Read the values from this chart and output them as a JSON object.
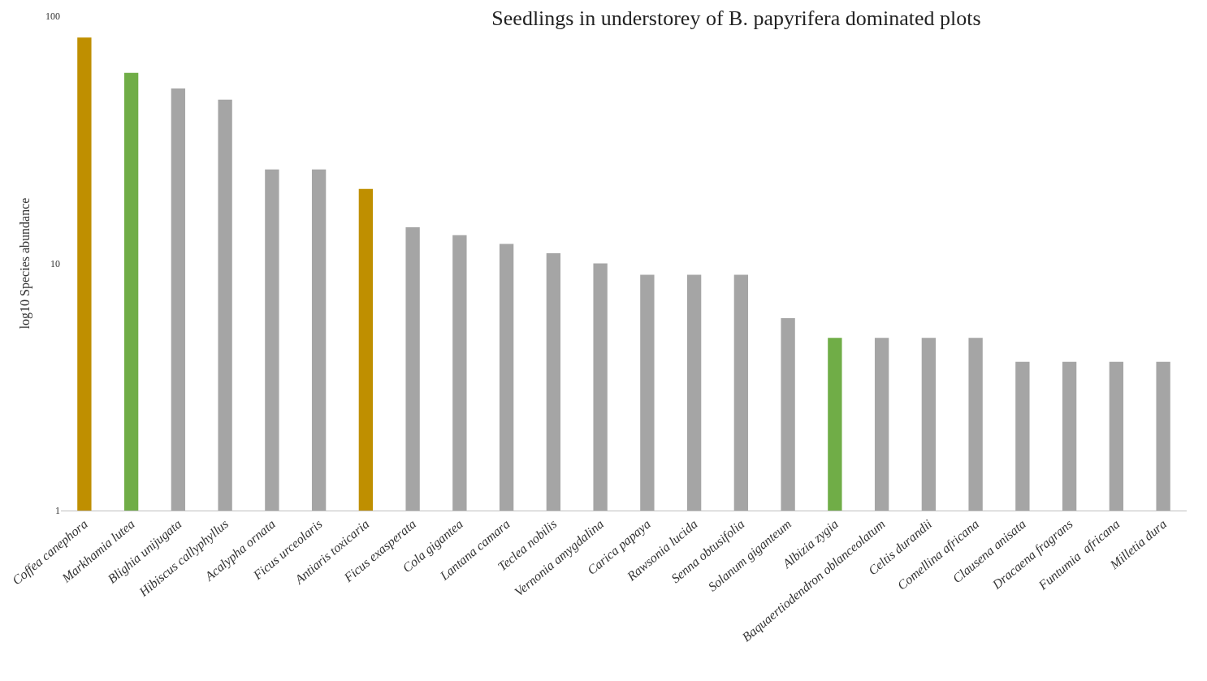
{
  "chart_data": {
    "type": "bar",
    "title": "Seedlings in understorey of B. papyrifera dominated plots",
    "ylabel": "log10 Species abundance",
    "categories": [
      "Coffea canephora",
      "Markhamia lutea",
      "Blighia unijugata",
      "Hibiscus callyphyllus",
      "Acalypha ornata",
      "Ficus urceolaris",
      "Antiaris toxicaria",
      "Ficus exasperata",
      "Cola gigantea",
      "Lantana camara",
      "Teclea nobilis",
      "Vernonia amygdalina",
      "Carica papaya",
      "Rawsonia lucida",
      "Senna obtusifolia",
      "Solanum giganteum",
      "Albizia zygia",
      "Baquaertiodendron oblanceolatum",
      "Celtis durandii",
      "Comellina africana",
      "Clausena anisata",
      "Dracaena fragrans",
      "Funtumia  africana",
      "Milletia dura"
    ],
    "values": [
      82,
      59,
      51,
      46,
      24,
      24,
      20,
      14,
      13,
      12,
      11,
      10,
      9,
      9,
      9,
      6,
      5,
      5,
      5,
      5,
      4,
      4,
      4,
      4
    ],
    "colors": [
      "#bf8f00",
      "#70ad47",
      "#a5a5a5",
      "#a5a5a5",
      "#a5a5a5",
      "#a5a5a5",
      "#bf8f00",
      "#a5a5a5",
      "#a5a5a5",
      "#a5a5a5",
      "#a5a5a5",
      "#a5a5a5",
      "#a5a5a5",
      "#a5a5a5",
      "#a5a5a5",
      "#a5a5a5",
      "#70ad47",
      "#a5a5a5",
      "#a5a5a5",
      "#a5a5a5",
      "#a5a5a5",
      "#a5a5a5",
      "#a5a5a5",
      "#a5a5a5"
    ],
    "log": "y",
    "ylim": [
      1,
      100
    ],
    "yticks": [
      1,
      10,
      100
    ]
  }
}
